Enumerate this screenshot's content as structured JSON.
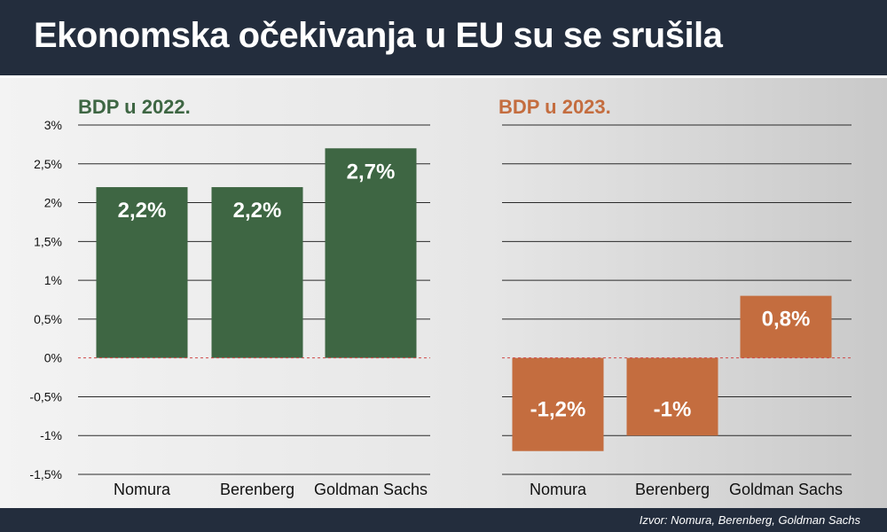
{
  "header": {
    "title": "Ekonomska očekivanja u EU su se srušila"
  },
  "footer": {
    "source": "Izvor: Nomura, Berenberg, Goldman Sachs"
  },
  "colors": {
    "green": "#3e6643",
    "orange": "#c46d3f",
    "header_bg": "#232d3d"
  },
  "chart_data": [
    {
      "type": "bar",
      "title": "BDP u 2022.",
      "categories": [
        "Nomura",
        "Berenberg",
        "Goldman Sachs"
      ],
      "values": [
        2.2,
        2.2,
        2.7
      ],
      "value_labels": [
        "2,2%",
        "2,2%",
        "2,7%"
      ],
      "ylim": [
        -1.5,
        3
      ],
      "yticks": [
        3,
        2.5,
        2,
        1.5,
        1,
        0.5,
        0,
        -0.5,
        -1,
        -1.5
      ],
      "ytick_labels": [
        "3%",
        "2,5%",
        "2%",
        "1,5%",
        "1%",
        "0,5%",
        "0%",
        "-0,5%",
        "-1%",
        "-1,5%"
      ],
      "grid": true,
      "color": "#3e6643"
    },
    {
      "type": "bar",
      "title": "BDP u 2023.",
      "categories": [
        "Nomura",
        "Berenberg",
        "Goldman Sachs"
      ],
      "values": [
        -1.2,
        -1,
        0.8
      ],
      "value_labels": [
        "-1,2%",
        "-1%",
        "0,8%"
      ],
      "ylim": [
        -1.5,
        3
      ],
      "grid": true,
      "color": "#c46d3f"
    }
  ]
}
